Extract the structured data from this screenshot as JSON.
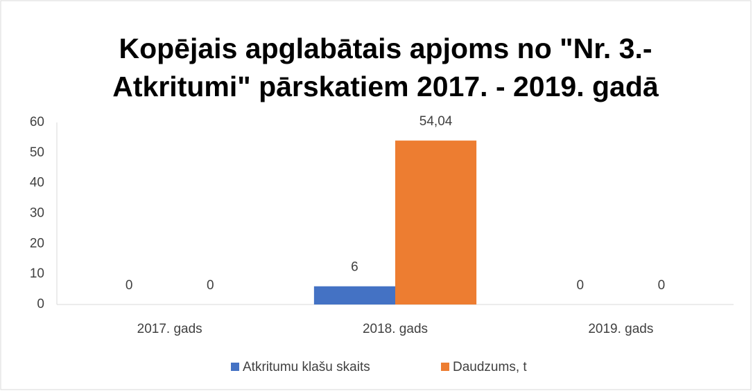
{
  "chart_data": {
    "type": "bar",
    "title": [
      "Kopējais apglabātais apjoms no \"Nr. 3.-",
      "Atkritumi\" pārskatiem 2017. - 2019. gadā"
    ],
    "categories": [
      "2017. gads",
      "2018. gads",
      "2019. gads"
    ],
    "series": [
      {
        "name": "Atkritumu klašu skaits",
        "color": "#4472c4",
        "values": [
          0,
          6,
          0
        ]
      },
      {
        "name": "Daudzums, t",
        "color": "#ed7d31",
        "values": [
          0,
          54.04,
          0
        ],
        "value_labels": [
          "0",
          "54,04",
          "0"
        ]
      }
    ],
    "ylim": [
      0,
      60
    ],
    "yticks": [
      0,
      10,
      20,
      30,
      40,
      50,
      60
    ],
    "grid": false,
    "legend": "bottom"
  }
}
